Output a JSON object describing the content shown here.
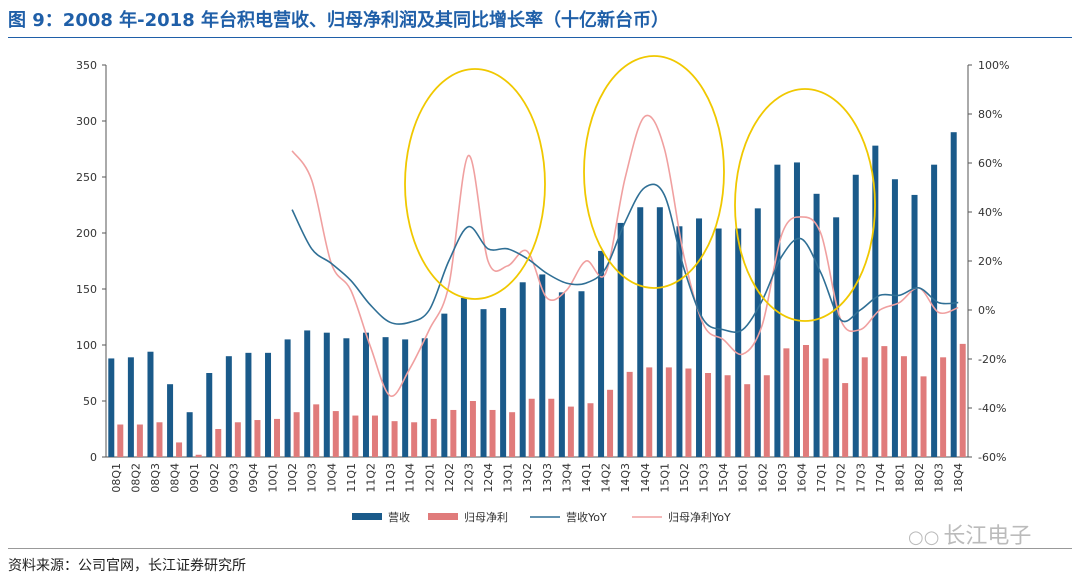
{
  "title": "图 9：2008 年-2018 年台积电营收、归母净利润及其同比增长率（十亿新台币）",
  "source": "资料来源：公司官网，长江证券研究所",
  "watermark": "长江电子",
  "colors": {
    "title": "#1f5fa8",
    "revenue_bar": "#1a5a8a",
    "profit_bar": "#e07b7b",
    "revenue_yoy": "#2f6f95",
    "profit_yoy": "#f0a0a0",
    "highlight": "#f0c800"
  },
  "chart_data": {
    "type": "bar",
    "categories": [
      "08Q1",
      "08Q2",
      "08Q3",
      "08Q4",
      "09Q1",
      "09Q2",
      "09Q3",
      "09Q4",
      "10Q1",
      "10Q2",
      "10Q3",
      "10Q4",
      "11Q1",
      "11Q2",
      "11Q3",
      "11Q4",
      "12Q1",
      "12Q2",
      "12Q3",
      "12Q4",
      "13Q1",
      "13Q2",
      "13Q3",
      "13Q4",
      "14Q1",
      "14Q2",
      "14Q3",
      "14Q4",
      "15Q1",
      "15Q2",
      "15Q3",
      "15Q4",
      "16Q1",
      "16Q2",
      "16Q3",
      "16Q4",
      "17Q1",
      "17Q2",
      "17Q3",
      "17Q4",
      "18Q1",
      "18Q2",
      "18Q3",
      "18Q4"
    ],
    "left_axis": {
      "ylim": [
        0,
        350
      ],
      "ticks": [
        "0",
        "50",
        "100",
        "150",
        "200",
        "250",
        "300",
        "350"
      ]
    },
    "right_axis": {
      "ylim": [
        -60,
        100
      ],
      "ticks": [
        "-60%",
        "-40%",
        "-20%",
        "0%",
        "20%",
        "40%",
        "60%",
        "80%",
        "100%"
      ]
    },
    "series": [
      {
        "name": "营收",
        "kind": "bar",
        "axis": "left",
        "values": [
          88,
          89,
          94,
          65,
          40,
          75,
          90,
          93,
          93,
          105,
          113,
          111,
          106,
          111,
          107,
          105,
          106,
          128,
          142,
          132,
          133,
          156,
          163,
          147,
          148,
          184,
          209,
          223,
          223,
          206,
          213,
          204,
          204,
          222,
          261,
          263,
          235,
          214,
          252,
          278,
          248,
          234,
          261,
          290
        ]
      },
      {
        "name": "归母净利",
        "kind": "bar",
        "axis": "left",
        "values": [
          29,
          29,
          31,
          13,
          2,
          25,
          31,
          33,
          34,
          40,
          47,
          41,
          37,
          37,
          32,
          31,
          34,
          42,
          50,
          42,
          40,
          52,
          52,
          45,
          48,
          60,
          76,
          80,
          80,
          79,
          75,
          73,
          65,
          73,
          97,
          100,
          88,
          66,
          89,
          99,
          90,
          72,
          89,
          101
        ]
      },
      {
        "name": "营收YoY",
        "kind": "line",
        "axis": "right",
        "values": [
          null,
          null,
          null,
          null,
          null,
          null,
          null,
          null,
          null,
          41,
          25,
          19,
          12,
          2,
          -5,
          -5,
          0,
          20,
          34,
          25,
          25,
          21,
          15,
          11,
          11,
          17,
          36,
          50,
          47,
          17,
          -4,
          -8,
          -8,
          4,
          22,
          29,
          15,
          -4,
          0,
          6,
          6,
          9,
          3,
          3
        ]
      },
      {
        "name": "归母净利YoY",
        "kind": "line",
        "axis": "right",
        "values": [
          null,
          null,
          null,
          null,
          null,
          null,
          null,
          null,
          null,
          65,
          53,
          19,
          8,
          -15,
          -35,
          -24,
          -8,
          10,
          63,
          20,
          18,
          24,
          5,
          8,
          20,
          15,
          54,
          79,
          66,
          22,
          -6,
          -12,
          -18,
          -6,
          31,
          38,
          31,
          -4,
          -8,
          0,
          3,
          9,
          -1,
          1
        ]
      }
    ],
    "legend": {
      "position": "bottom",
      "entries": [
        "营收",
        "归母净利",
        "营收YoY",
        "归母净利YoY"
      ]
    },
    "annotations": {
      "ellipse_count": 3,
      "ellipse_color": "yellow",
      "around": [
        "12Q3",
        "14Q4",
        "16Q4"
      ]
    },
    "grid": false
  }
}
